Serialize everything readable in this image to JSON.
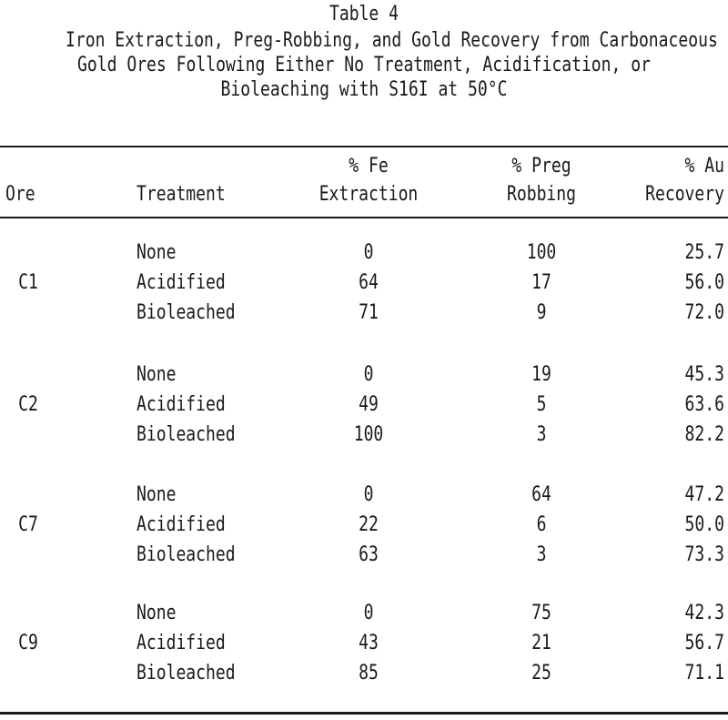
{
  "table": {
    "caption": "Table 4",
    "title_lines": [
      "Iron Extraction, Preg-Robbing, and Gold Recovery from Carbonaceous",
      "Gold Ores Following Either No Treatment, Acidification, or",
      "Bioleaching with S16I at 50°C"
    ],
    "headers": {
      "ore": "Ore",
      "treatment": "Treatment",
      "fe_line1": "% Fe",
      "fe_line2": "Extraction",
      "preg_line1": "% Preg",
      "preg_line2": "Robbing",
      "au_line1": "% Au",
      "au_line2": "Recovery"
    },
    "groups": [
      {
        "ore": "C1",
        "rows": [
          {
            "treatment": "None",
            "fe": "0",
            "preg": "100",
            "au": "25.7"
          },
          {
            "treatment": "Acidified",
            "fe": "64",
            "preg": "17",
            "au": "56.0"
          },
          {
            "treatment": "Bioleached",
            "fe": "71",
            "preg": "9",
            "au": "72.0"
          }
        ]
      },
      {
        "ore": "C2",
        "rows": [
          {
            "treatment": "None",
            "fe": "0",
            "preg": "19",
            "au": "45.3"
          },
          {
            "treatment": "Acidified",
            "fe": "49",
            "preg": "5",
            "au": "63.6"
          },
          {
            "treatment": "Bioleached",
            "fe": "100",
            "preg": "3",
            "au": "82.2"
          }
        ]
      },
      {
        "ore": "C7",
        "rows": [
          {
            "treatment": "None",
            "fe": "0",
            "preg": "64",
            "au": "47.2"
          },
          {
            "treatment": "Acidified",
            "fe": "22",
            "preg": "6",
            "au": "50.0"
          },
          {
            "treatment": "Bioleached",
            "fe": "63",
            "preg": "3",
            "au": "73.3"
          }
        ]
      },
      {
        "ore": "C9",
        "rows": [
          {
            "treatment": "None",
            "fe": "0",
            "preg": "75",
            "au": "42.3"
          },
          {
            "treatment": "Acidified",
            "fe": "43",
            "preg": "21",
            "au": "56.7"
          },
          {
            "treatment": "Bioleached",
            "fe": "85",
            "preg": "25",
            "au": "71.1"
          }
        ]
      }
    ]
  }
}
